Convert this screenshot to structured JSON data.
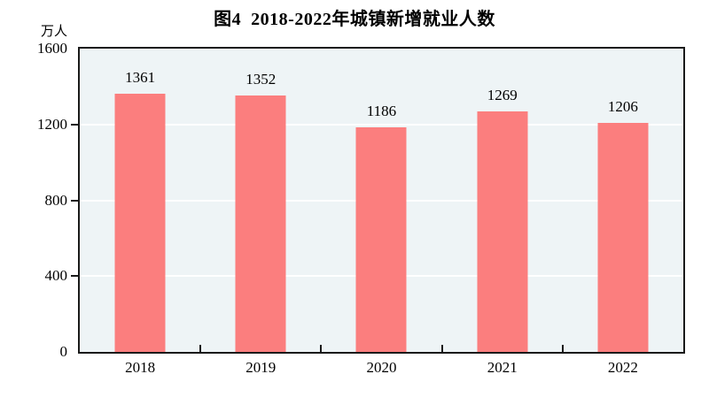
{
  "chart": {
    "title": "图4  2018-2022年城镇新增就业人数",
    "unit_label": "万人"
  },
  "chart_data": {
    "type": "bar",
    "title": "图4  2018-2022年城镇新增就业人数",
    "ylabel": "万人",
    "xlabel": "",
    "categories": [
      "2018",
      "2019",
      "2020",
      "2021",
      "2022"
    ],
    "values": [
      1361,
      1352,
      1186,
      1269,
      1206
    ],
    "ylim": [
      0,
      1600
    ],
    "yticks": [
      0,
      400,
      800,
      1200,
      1600
    ],
    "grid": "on",
    "legend": "none",
    "bar_color": "#fb7e7e",
    "plot_bg_color": "#eef4f6",
    "gridline_color": "#ffffff",
    "axis_color": "#1a1a1a"
  }
}
